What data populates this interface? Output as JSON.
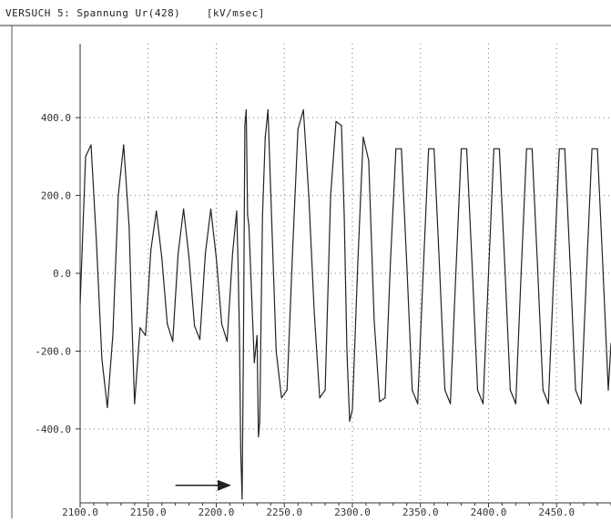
{
  "header": {
    "title": "VERSUCH 5: Spannung Ur(428)",
    "unit": "[kV/msec]"
  },
  "chart_data": {
    "type": "line",
    "title": "VERSUCH 5: Spannung Ur(428)",
    "unit": "[kV/msec]",
    "xlabel": "",
    "ylabel": "",
    "xlim": [
      2100,
      2490
    ],
    "ylim": [
      -590,
      590
    ],
    "grid": true,
    "x_ticks": [
      2100,
      2150,
      2200,
      2250,
      2300,
      2350,
      2400,
      2450
    ],
    "x_tick_labels": [
      "2100.0",
      "2150.0",
      "2200.0",
      "2250.0",
      "2300.0",
      "2350.0",
      "2400.0",
      "2450.0"
    ],
    "y_ticks": [
      400,
      200,
      0,
      -200,
      -400
    ],
    "y_tick_labels": [
      "400.0",
      "200.0",
      "0.0",
      "-200.0",
      "-400.0"
    ],
    "series": [
      {
        "color": "#222222",
        "x": [
          2100.0,
          2104.0,
          2108.0,
          2112.0,
          2116.0,
          2120.0,
          2124.0,
          2128.0,
          2132.0,
          2136.0,
          2138.0,
          2140.0,
          2144.0,
          2148.0,
          2152.0,
          2156.0,
          2160.0,
          2164.0,
          2168.0,
          2172.0,
          2176.0,
          2180.0,
          2184.0,
          2188.0,
          2192.0,
          2196.0,
          2200.0,
          2204.0,
          2208.0,
          2212.0,
          2215.0,
          2216.0,
          2217.0,
          2218.0,
          2219.0,
          2220.0,
          2221.0,
          2222.0,
          2223.0,
          2224.0,
          2226.0,
          2228.0,
          2230.0,
          2231.0,
          2232.0,
          2233.0,
          2234.0,
          2236.0,
          2238.0,
          2240.0,
          2244.0,
          2248.0,
          2252.0,
          2256.0,
          2260.0,
          2264.0,
          2268.0,
          2272.0,
          2276.0,
          2280.0,
          2284.0,
          2288.0,
          2292.0,
          2294.0,
          2296.0,
          2298.0,
          2300.0,
          2304.0,
          2308.0,
          2312.0,
          2316.0,
          2320.0,
          2324.0,
          2328.0,
          2332.0,
          2336.0,
          2340.0,
          2344.0,
          2348.0,
          2352.0,
          2356.0,
          2360.0,
          2364.0,
          2368.0,
          2372.0,
          2376.0,
          2380.0,
          2384.0,
          2388.0,
          2392.0,
          2396.0,
          2400.0,
          2404.0,
          2408.0,
          2412.0,
          2416.0,
          2420.0,
          2424.0,
          2428.0,
          2432.0,
          2436.0,
          2440.0,
          2444.0,
          2448.0,
          2452.0,
          2456.0,
          2460.0,
          2464.0,
          2468.0,
          2472.0,
          2476.0,
          2480.0,
          2484.0,
          2488.0,
          2490.0
        ],
        "y": [
          -80,
          300,
          330,
          80,
          -220,
          -345,
          -160,
          200,
          330,
          120,
          -120,
          -335,
          -140,
          -160,
          60,
          160,
          40,
          -130,
          -175,
          50,
          165,
          40,
          -135,
          -170,
          50,
          165,
          40,
          -130,
          -175,
          50,
          160,
          30,
          -150,
          -460,
          -580,
          -170,
          380,
          420,
          150,
          120,
          -60,
          -230,
          -160,
          -420,
          -380,
          -100,
          150,
          350,
          420,
          210,
          -200,
          -320,
          -300,
          50,
          370,
          420,
          200,
          -100,
          -320,
          -300,
          200,
          390,
          380,
          150,
          -200,
          -380,
          -350,
          30,
          350,
          290,
          -120,
          -330,
          -320,
          30,
          320,
          320,
          20,
          -300,
          -335,
          0,
          320,
          320,
          20,
          -300,
          -335,
          0,
          320,
          320,
          20,
          -300,
          -335,
          0,
          320,
          320,
          20,
          -300,
          -335,
          0,
          320,
          320,
          20,
          -300,
          -335,
          0,
          320,
          320,
          20,
          -300,
          -335,
          0,
          320,
          320,
          20,
          -300,
          -180
        ]
      }
    ],
    "annotations": [
      {
        "type": "arrow",
        "x_start": 2170,
        "x_end": 2210,
        "y": -545
      }
    ]
  }
}
